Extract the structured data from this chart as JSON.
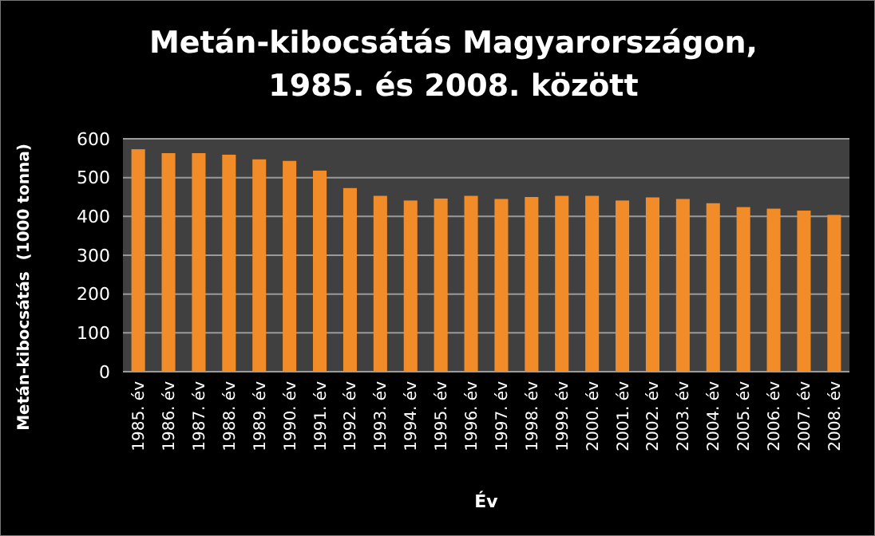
{
  "chart_data": {
    "type": "bar",
    "title": "Metán-kibocsátás Magyarországon, 1985. és 2008. között",
    "xlabel": "Év",
    "ylabel": "Metán-kibocsátás  (1000 tonna)",
    "categories": [
      "1985. év",
      "1986. év",
      "1987. év",
      "1988. év",
      "1989. év",
      "1990. év",
      "1991. év",
      "1992. év",
      "1993. év",
      "1994. év",
      "1995. év",
      "1996. év",
      "1997. év",
      "1998. év",
      "1999. év",
      "2000. év",
      "2001. év",
      "2002. év",
      "2003. év",
      "2004. év",
      "2005. év",
      "2006. év",
      "2007. év",
      "2008. év"
    ],
    "values": [
      573,
      563,
      563,
      559,
      547,
      543,
      518,
      473,
      453,
      441,
      446,
      453,
      445,
      450,
      453,
      453,
      441,
      449,
      445,
      434,
      424,
      420,
      415,
      404
    ],
    "color": "#f28c28",
    "ylim": [
      0,
      600
    ],
    "yticks": [
      0,
      100,
      200,
      300,
      400,
      500,
      600
    ],
    "grid": "y"
  }
}
